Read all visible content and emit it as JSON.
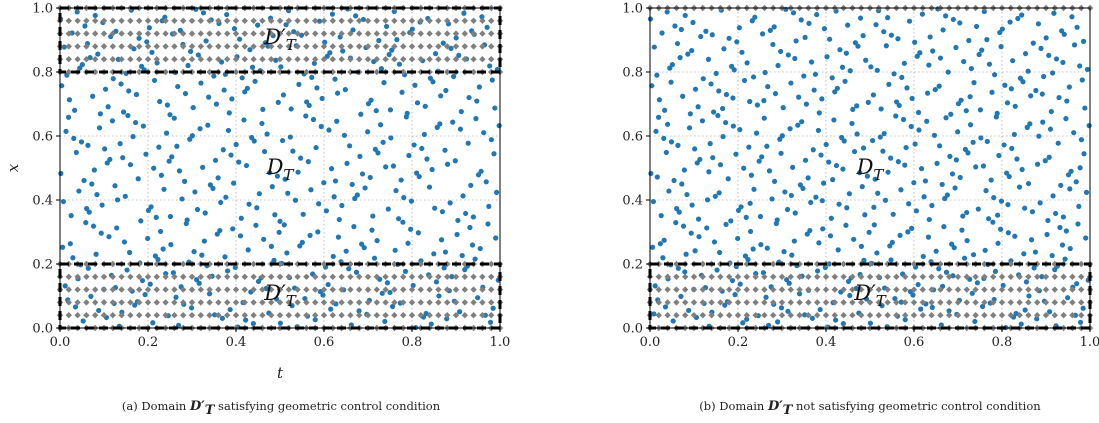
{
  "colors": {
    "interior": "#1f77b4",
    "boundary": "#7f7f7f",
    "box": "#000000",
    "grid": "#b0b0b0"
  },
  "chart_data": [
    {
      "type": "scatter",
      "panel": "a",
      "caption_prefix": "(a) Domain",
      "caption_domain": "D′T",
      "caption_suffix": "satisfying geometric control condition",
      "xlabel": "t",
      "ylabel": "x",
      "xlim": [
        0.0,
        1.0
      ],
      "ylim": [
        0.0,
        1.0
      ],
      "xticks": [
        "0.0",
        "0.2",
        "0.4",
        "0.6",
        "0.8",
        "1.0"
      ],
      "yticks": [
        "0.0",
        "0.2",
        "0.4",
        "0.6",
        "0.8",
        "1.0"
      ],
      "grid": true,
      "control_regions": [
        {
          "name": "D′T",
          "t_range": [
            0.0,
            1.0
          ],
          "x_range": [
            0.8,
            1.0
          ]
        },
        {
          "name": "D′T",
          "t_range": [
            0.0,
            1.0
          ],
          "x_range": [
            0.0,
            0.2
          ]
        }
      ],
      "interior_label": {
        "text": "DT",
        "t": 0.5,
        "x": 0.5
      },
      "series": [
        {
          "role": "collocation",
          "marker": "circle",
          "x_range": [
            0.0,
            1.0
          ],
          "n": 520
        },
        {
          "role": "observation",
          "marker": "diamond",
          "x_ranges": [
            [
              0.0,
              0.2
            ],
            [
              0.8,
              1.0
            ]
          ],
          "step": 0.04
        }
      ]
    },
    {
      "type": "scatter",
      "panel": "b",
      "caption_prefix": "(b) Domain",
      "caption_domain": "D′T",
      "caption_suffix": "not satisfying geometric control condition",
      "xlabel": "",
      "ylabel": "",
      "xlim": [
        0.0,
        1.0
      ],
      "ylim": [
        0.0,
        1.0
      ],
      "xticks": [
        "0.0",
        "0.2",
        "0.4",
        "0.6",
        "0.8",
        "1.0"
      ],
      "yticks": [
        "0.0",
        "0.2",
        "0.4",
        "0.6",
        "0.8",
        "1.0"
      ],
      "grid": true,
      "control_regions": [
        {
          "name": "D′T",
          "t_range": [
            0.0,
            1.0
          ],
          "x_range": [
            0.0,
            0.2
          ]
        }
      ],
      "interior_label": {
        "text": "DT",
        "t": 0.5,
        "x": 0.5
      },
      "series": [
        {
          "role": "collocation",
          "marker": "circle",
          "x_range": [
            0.0,
            1.0
          ],
          "n": 600
        },
        {
          "role": "observation",
          "marker": "diamond",
          "x_ranges": [
            [
              0.0,
              0.2
            ],
            [
              1.0,
              1.0
            ]
          ],
          "step": 0.04
        }
      ]
    }
  ]
}
